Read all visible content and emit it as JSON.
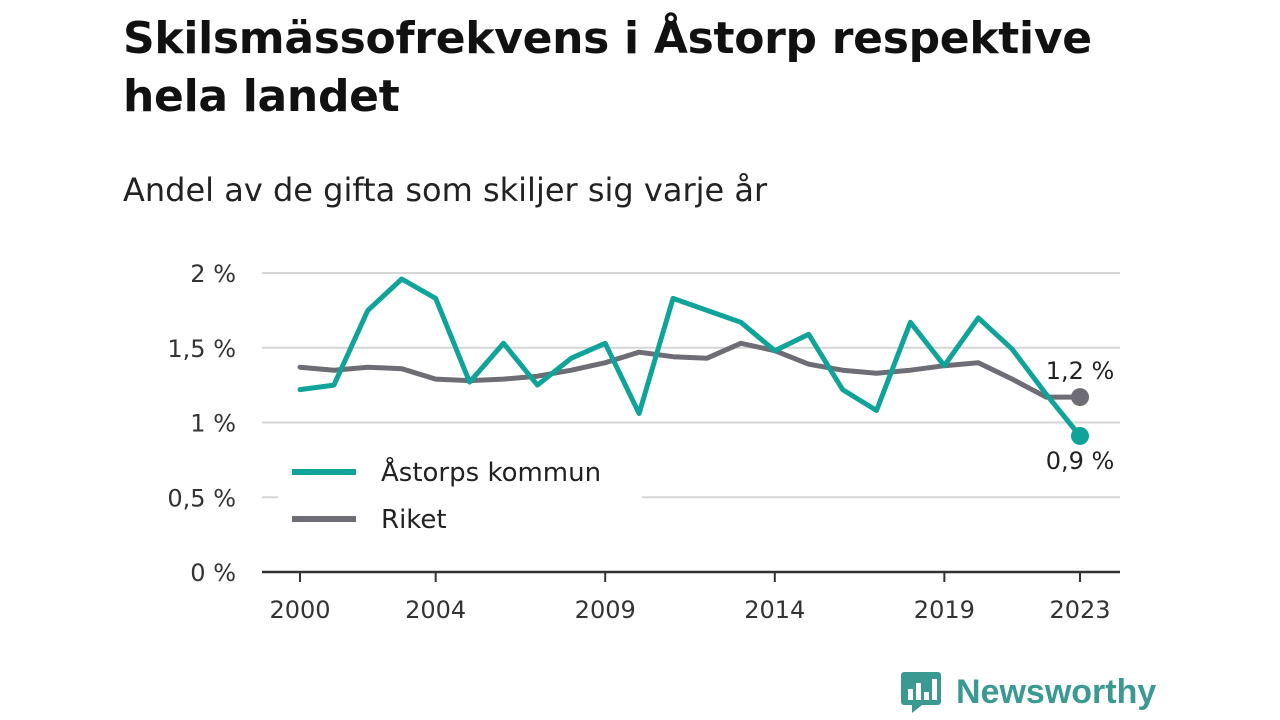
{
  "header": {
    "title": "Skilsmässofrekvens i Åstorp respektive hela landet",
    "subtitle": "Andel av de gifta som skiljer sig varje år"
  },
  "colors": {
    "astorp": "#0fa39a",
    "riket": "#6e6d75",
    "grid": "#d6d6d6",
    "axis": "#333333"
  },
  "branding": {
    "name": "Newsworthy",
    "icon": "newsworthy-logo-icon"
  },
  "chart_data": {
    "type": "line",
    "title": "Skilsmässofrekvens i Åstorp respektive hela landet",
    "subtitle": "Andel av de gifta som skiljer sig varje år",
    "xlabel": "",
    "ylabel": "",
    "x": [
      2000,
      2001,
      2002,
      2003,
      2004,
      2005,
      2006,
      2007,
      2008,
      2009,
      2010,
      2011,
      2012,
      2013,
      2014,
      2015,
      2016,
      2017,
      2018,
      2019,
      2020,
      2021,
      2022,
      2023
    ],
    "x_ticks": [
      2000,
      2004,
      2009,
      2014,
      2019,
      2023
    ],
    "x_tick_labels": [
      "2000",
      "2004",
      "2009",
      "2014",
      "2019",
      "2023"
    ],
    "y_ticks": [
      0,
      0.5,
      1,
      1.5,
      2
    ],
    "y_tick_labels": [
      "0 %",
      "0,5 %",
      "1 %",
      "1,5 %",
      "2 %"
    ],
    "ylim": [
      0,
      2
    ],
    "grid": true,
    "legend_position": "bottom-left",
    "series": [
      {
        "name": "Åstorps kommun",
        "color": "#0fa39a",
        "values": [
          1.22,
          1.25,
          1.75,
          1.96,
          1.83,
          1.27,
          1.53,
          1.25,
          1.43,
          1.53,
          1.06,
          1.83,
          1.75,
          1.67,
          1.48,
          1.59,
          1.22,
          1.08,
          1.67,
          1.38,
          1.7,
          1.49,
          1.19,
          0.91
        ],
        "end_label": "0,9 %"
      },
      {
        "name": "Riket",
        "color": "#6e6d75",
        "values": [
          1.37,
          1.35,
          1.37,
          1.36,
          1.29,
          1.28,
          1.29,
          1.31,
          1.35,
          1.4,
          1.47,
          1.44,
          1.43,
          1.53,
          1.48,
          1.39,
          1.35,
          1.33,
          1.35,
          1.38,
          1.4,
          1.29,
          1.17,
          1.17
        ],
        "end_label": "1,2 %"
      }
    ]
  }
}
